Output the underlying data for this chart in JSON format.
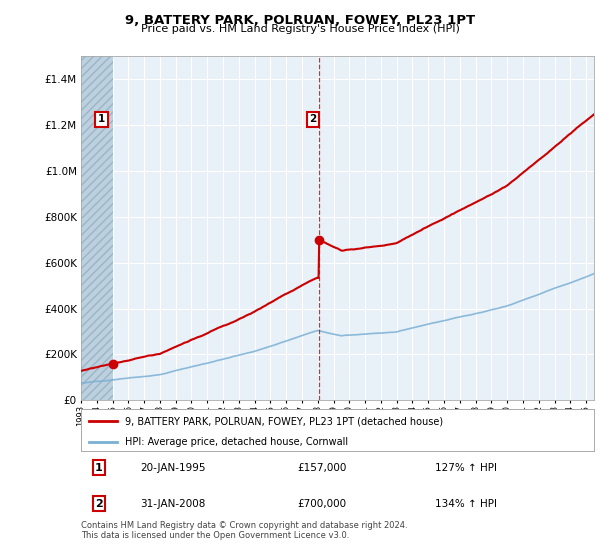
{
  "title": "9, BATTERY PARK, POLRUAN, FOWEY, PL23 1PT",
  "subtitle": "Price paid vs. HM Land Registry's House Price Index (HPI)",
  "legend_line1": "9, BATTERY PARK, POLRUAN, FOWEY, PL23 1PT (detached house)",
  "legend_line2": "HPI: Average price, detached house, Cornwall",
  "sale1_date": "20-JAN-1995",
  "sale1_price": 157000,
  "sale1_hpi_text": "127% ↑ HPI",
  "sale2_date": "31-JAN-2008",
  "sale2_price": 700000,
  "sale2_hpi_text": "134% ↑ HPI",
  "footnote": "Contains HM Land Registry data © Crown copyright and database right 2024.\nThis data is licensed under the Open Government Licence v3.0.",
  "plot_bg": "#e8f0f8",
  "hatch_facecolor": "#bdd0de",
  "hatch_edgecolor": "#9ab5c8",
  "grid_color": "#ffffff",
  "red_color": "#cc0000",
  "blue_color": "#7ab0d4",
  "ylim_max": 1500000,
  "sale1_year": 1995.05,
  "sale2_year": 2008.08,
  "xmin": 1993.0,
  "xmax": 2025.5
}
